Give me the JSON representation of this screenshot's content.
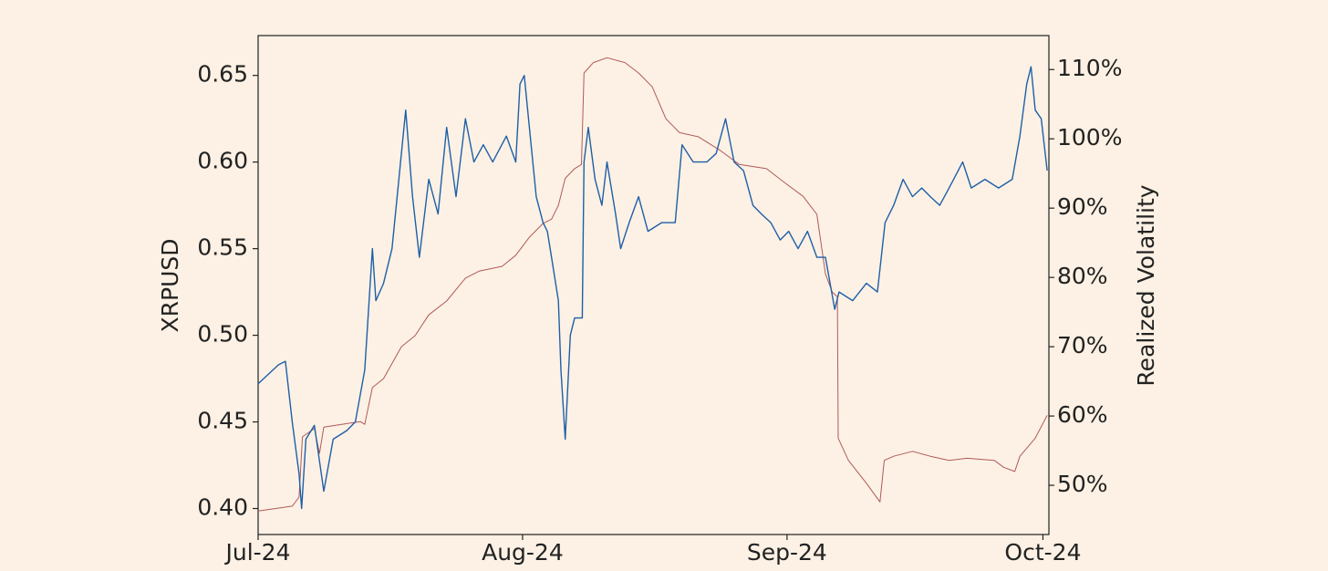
{
  "chart_data": {
    "type": "line",
    "ylabel": "XRPUSD",
    "y2label": "Realized Volatility",
    "xlim": [
      0,
      92.7
    ],
    "xticks": [
      {
        "value": 0,
        "label": "Jul-24"
      },
      {
        "value": 31,
        "label": "Aug-24"
      },
      {
        "value": 62,
        "label": "Sep-24"
      },
      {
        "value": 92,
        "label": "Oct-24"
      }
    ],
    "ylim": [
      0.385,
      0.673
    ],
    "yticks": [
      {
        "value": 0.4,
        "label": "0.40"
      },
      0.45,
      {
        "value": 0.5,
        "label": "0.50"
      },
      0.55,
      {
        "value": 0.6,
        "label": "0.60"
      },
      0.65
    ],
    "y2lim": [
      42.9,
      114.9
    ],
    "y2ticks": [
      {
        "value": 50,
        "label": "50%"
      },
      {
        "value": 60,
        "label": "60%"
      },
      {
        "value": 70,
        "label": "70%"
      },
      {
        "value": 80,
        "label": "80%"
      },
      {
        "value": 90,
        "label": "90%"
      },
      {
        "value": 100,
        "label": "100%"
      },
      {
        "value": 110,
        "label": "110%"
      }
    ],
    "series": [
      {
        "color": "#1f5fa8",
        "x": [
          0,
          1.3,
          2.4,
          3.2,
          4.0,
          4.8,
          5.1,
          5.6,
          6.6,
          7.7,
          8.8,
          10.4,
          11.4,
          12.5,
          13.4,
          13.8,
          14.7,
          15.7,
          16.5,
          17.3,
          18.1,
          18.9,
          20.0,
          21.1,
          22.1,
          23.2,
          24.3,
          25.3,
          26.4,
          27.5,
          29.1,
          30.2,
          30.7,
          31.2,
          31.8,
          32.6,
          33.4,
          33.9,
          34.4,
          35.2,
          35.5,
          36.0,
          36.6,
          37.1,
          38.0,
          38.2,
          38.7,
          39.5,
          40.3,
          40.9,
          41.9,
          42.5,
          43.5,
          44.6,
          45.7,
          47.3,
          48.9,
          49.7,
          51.0,
          52.6,
          53.7,
          54.8,
          55.8,
          56.9,
          58.0,
          59.0,
          60.1,
          61.2,
          62.2,
          63.3,
          64.4,
          65.5,
          66.5,
          67.6,
          68.1,
          69.7,
          71.3,
          72.6,
          73.5,
          74.5,
          75.6,
          76.7,
          77.8,
          78.8,
          79.9,
          81.0,
          82.6,
          83.6,
          85.2,
          86.8,
          88.4,
          89.3,
          90.1,
          90.6,
          91.1,
          91.8,
          92.5
        ],
        "values": [
          0.472,
          0.478,
          0.483,
          0.485,
          0.45,
          0.42,
          0.4,
          0.44,
          0.448,
          0.41,
          0.44,
          0.445,
          0.45,
          0.48,
          0.55,
          0.52,
          0.53,
          0.55,
          0.59,
          0.63,
          0.58,
          0.545,
          0.59,
          0.57,
          0.62,
          0.58,
          0.625,
          0.6,
          0.61,
          0.6,
          0.615,
          0.6,
          0.645,
          0.65,
          0.62,
          0.58,
          0.565,
          0.56,
          0.545,
          0.52,
          0.48,
          0.44,
          0.5,
          0.51,
          0.51,
          0.6,
          0.62,
          0.59,
          0.575,
          0.6,
          0.57,
          0.55,
          0.565,
          0.58,
          0.56,
          0.565,
          0.565,
          0.61,
          0.6,
          0.6,
          0.605,
          0.625,
          0.6,
          0.595,
          0.575,
          0.57,
          0.565,
          0.555,
          0.56,
          0.55,
          0.56,
          0.545,
          0.545,
          0.515,
          0.525,
          0.52,
          0.53,
          0.525,
          0.565,
          0.575,
          0.59,
          0.58,
          0.585,
          0.58,
          0.575,
          0.585,
          0.6,
          0.585,
          0.59,
          0.585,
          0.59,
          0.615,
          0.645,
          0.655,
          0.63,
          0.625,
          0.595
        ]
      },
      {
        "color": "#b05a5a",
        "axis": "y2",
        "x": [
          0,
          4.0,
          4.8,
          5.2,
          6.6,
          7.2,
          7.7,
          9.8,
          12.0,
          12.5,
          13.4,
          14.7,
          16.8,
          18.4,
          20.0,
          22.1,
          24.3,
          25.9,
          28.6,
          30.2,
          31.8,
          33.4,
          34.4,
          35.2,
          36.0,
          37.1,
          37.9,
          38.2,
          39.3,
          40.9,
          43.0,
          44.6,
          46.2,
          47.8,
          49.4,
          51.6,
          54.2,
          56.4,
          59.6,
          61.7,
          63.9,
          65.5,
          66.5,
          67.3,
          67.9,
          68.0,
          69.2,
          71.3,
          72.9,
          73.4,
          74.5,
          76.7,
          78.8,
          81.0,
          83.1,
          86.3,
          87.4,
          88.7,
          89.3,
          91.1,
          92.5
        ],
        "values": [
          46.3,
          47,
          48.3,
          57,
          58.2,
          54.6,
          58.4,
          58.8,
          59.2,
          58.8,
          64.1,
          65.4,
          70,
          71.6,
          74.6,
          76.6,
          79.9,
          80.9,
          81.6,
          83.2,
          85.8,
          87.8,
          88.4,
          90.4,
          94.3,
          95.7,
          96.3,
          109.5,
          111,
          111.7,
          111,
          109.5,
          107.5,
          102.9,
          100.9,
          100.3,
          98.3,
          96.3,
          95.7,
          93.7,
          91.7,
          89.1,
          80.5,
          77.9,
          77.2,
          56.8,
          53.6,
          50.3,
          47.6,
          53.6,
          54.2,
          54.9,
          54.2,
          53.6,
          53.9,
          53.6,
          52.6,
          52,
          54.2,
          56.8,
          60.1
        ]
      }
    ]
  }
}
